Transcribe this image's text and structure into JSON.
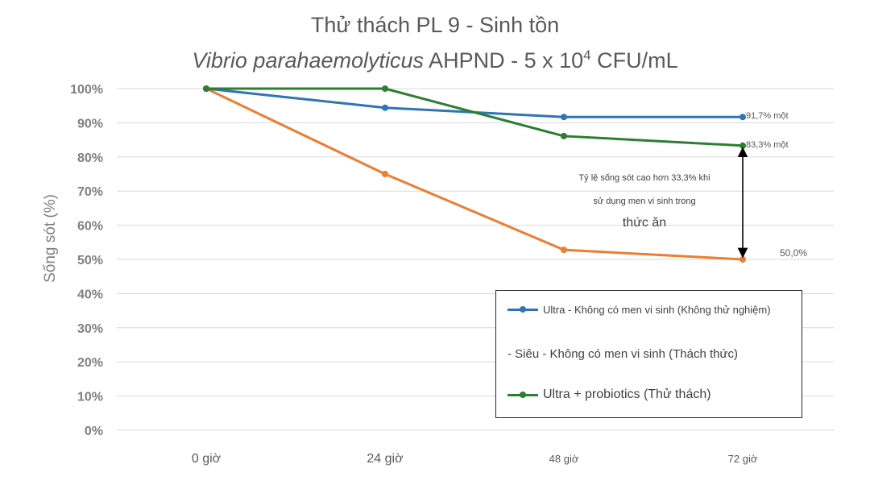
{
  "title": "Thử thách PL 9 - Sinh tồn",
  "subtitle": {
    "italic": "Vibrio parahaemolyticus",
    "rest": " AHPND - 5 x 10",
    "exp": "4",
    "tail": " CFU/mL"
  },
  "chart_data": {
    "type": "line",
    "categories": [
      "0 giờ",
      "24 giờ",
      "48 giờ",
      "72 giờ"
    ],
    "ylabel": "Sống sót (%)",
    "xlabel": "",
    "ylim": [
      0,
      100
    ],
    "yticks": [
      "0%",
      "10%",
      "20%",
      "30%",
      "40%",
      "50%",
      "60%",
      "70%",
      "80%",
      "90%",
      "100%"
    ],
    "grid": true,
    "legend_position": "bottom-right",
    "series": [
      {
        "name": "Ultra - Không có men vi sinh (Không thử nghiệm)",
        "color": "#2e75b6",
        "values": [
          100,
          94.4,
          91.7,
          91.7
        ]
      },
      {
        "name": "- Siêu - Không có men vi sinh (Thách thức)",
        "color": "#ed7d31",
        "values": [
          100,
          75,
          52.8,
          50.0
        ]
      },
      {
        "name": "Ultra + probiotics (Thử thách)",
        "color": "#2e7d32",
        "values": [
          100,
          100,
          86.1,
          83.3
        ]
      }
    ],
    "end_labels": [
      "91,7% một",
      "50,0%",
      "83,3% một"
    ],
    "annotation": {
      "line1": "Tỷ lệ sống sót cao hơn 33,3% khi",
      "line2": "sử dụng men vi sinh trong",
      "line3": "thức ăn"
    }
  }
}
